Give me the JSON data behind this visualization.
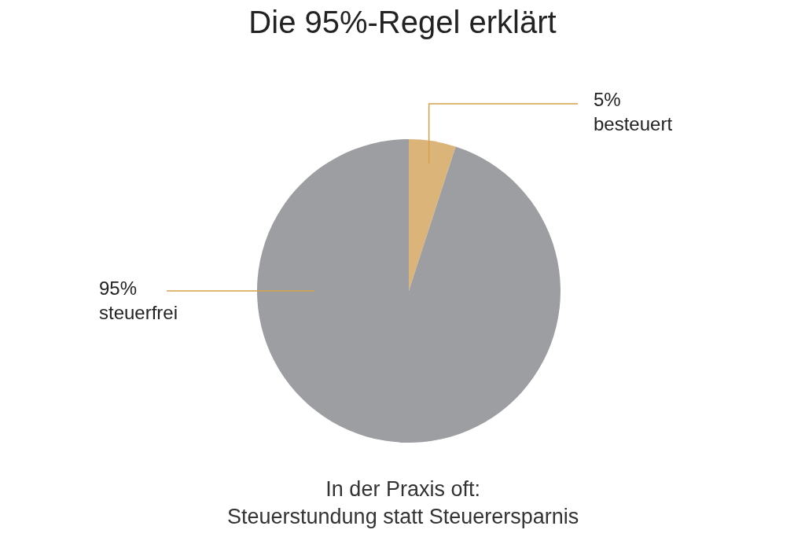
{
  "chart_data": {
    "type": "pie",
    "title": "Die 95%-Regel erklärt",
    "categories": [
      "besteuert",
      "steuerfrei"
    ],
    "values": [
      5,
      95
    ],
    "colors": [
      "#dbb47a",
      "#9d9ea2"
    ],
    "value_labels": [
      "5%",
      "95%"
    ],
    "annotations": [
      "In der Praxis oft:\nSteuerstundung statt Steuerersparnis"
    ]
  }
}
